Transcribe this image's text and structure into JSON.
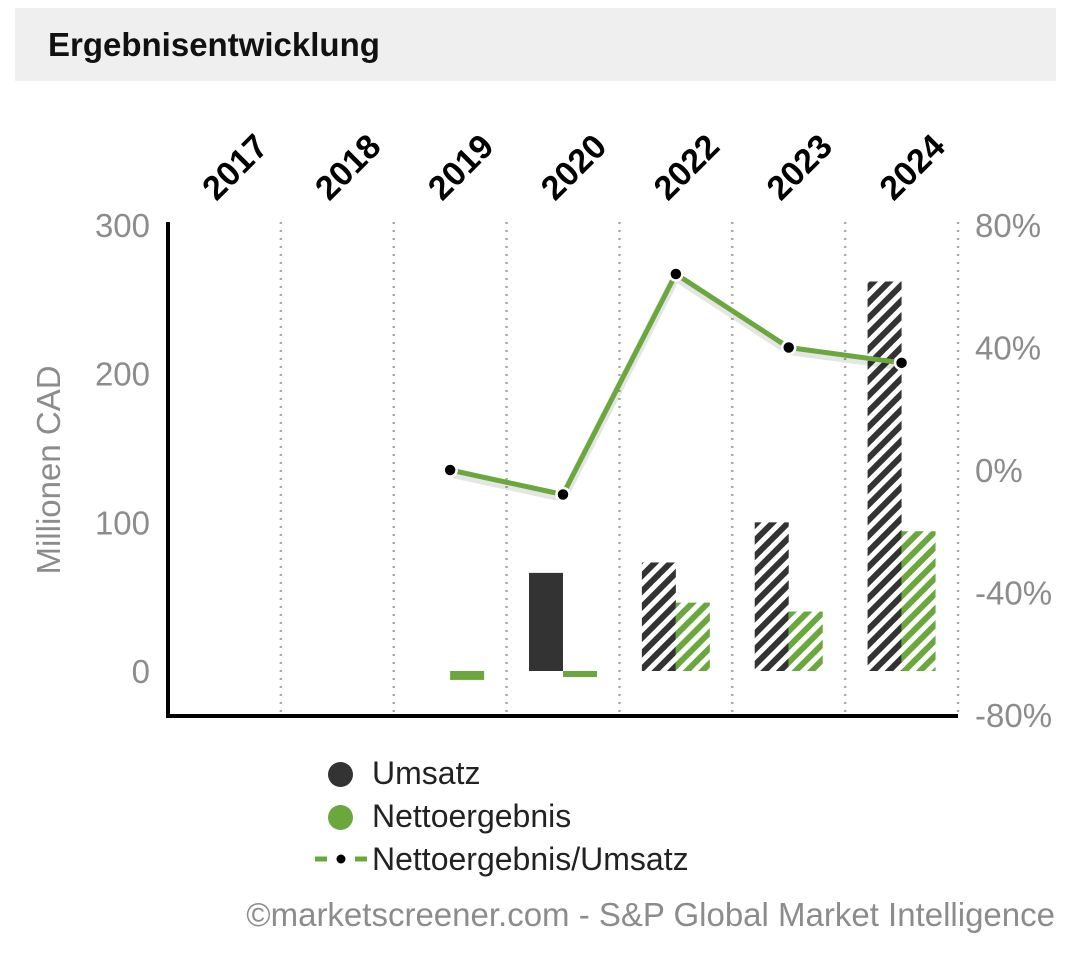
{
  "header": {
    "title": "Ergebnisentwicklung"
  },
  "colors": {
    "revenue": "#333333",
    "net_income": "#6aa83e",
    "line": "#6aa83e",
    "axis": "#000000",
    "tick": "#8c8c8c",
    "grid": "#aaaaaa"
  },
  "chart_data": {
    "type": "bar+line",
    "categories": [
      "2017",
      "2018",
      "2019",
      "2020",
      "2022",
      "2023",
      "2024"
    ],
    "ylabel": "Millionen CAD",
    "ylim": [
      -30,
      300
    ],
    "yticks": [
      "300",
      "200",
      "100",
      "0"
    ],
    "yticks_values": [
      300,
      200,
      100,
      0
    ],
    "y2lim": [
      -80,
      80
    ],
    "y2ticks": [
      "80%",
      "40%",
      "0%",
      "-40%",
      "-80%"
    ],
    "y2ticks_values": [
      80,
      40,
      0,
      -40,
      -80
    ],
    "series": [
      {
        "name": "Umsatz",
        "kind": "bar",
        "values": [
          null,
          null,
          0,
          66,
          73,
          100,
          262
        ],
        "estimated": [
          false,
          false,
          false,
          false,
          true,
          true,
          true
        ]
      },
      {
        "name": "Nettoergebnis",
        "kind": "bar",
        "values": [
          null,
          null,
          -6,
          -2,
          46,
          40,
          94
        ],
        "estimated": [
          false,
          false,
          false,
          false,
          true,
          true,
          true
        ]
      },
      {
        "name": "Nettoergebnis/Umsatz",
        "kind": "line",
        "axis": "right",
        "values": [
          null,
          null,
          0,
          -8,
          64,
          40,
          35
        ]
      }
    ]
  },
  "legend": [
    {
      "label": "Umsatz",
      "icon": "dark-circle"
    },
    {
      "label": "Nettoergebnis",
      "icon": "green-circle"
    },
    {
      "label": "Nettoergebnis/Umsatz",
      "icon": "dashed-line-dot"
    }
  ],
  "footer": {
    "source": "©marketscreener.com - S&P Global Market Intelligence"
  }
}
